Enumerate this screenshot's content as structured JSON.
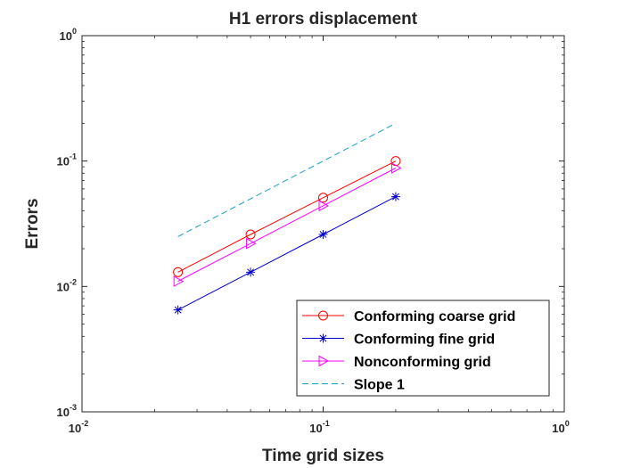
{
  "chart_data": {
    "type": "line",
    "title": "H1 errors displacement",
    "xlabel": "Time grid sizes",
    "ylabel": "Errors",
    "xscale": "log",
    "yscale": "log",
    "xlim": [
      0.01,
      1
    ],
    "ylim": [
      0.001,
      1
    ],
    "x_ticks": [
      {
        "base": "10",
        "exp": "-2",
        "value": 0.01
      },
      {
        "base": "10",
        "exp": "-1",
        "value": 0.1
      },
      {
        "base": "10",
        "exp": "0",
        "value": 1
      }
    ],
    "y_ticks": [
      {
        "base": "10",
        "exp": "-3",
        "value": 0.001
      },
      {
        "base": "10",
        "exp": "-2",
        "value": 0.01
      },
      {
        "base": "10",
        "exp": "-1",
        "value": 0.1
      },
      {
        "base": "10",
        "exp": "0",
        "value": 1
      }
    ],
    "grid": false,
    "legend_position": "bottom-right",
    "series": [
      {
        "name": "Conforming coarse grid",
        "color": "#ff0000",
        "marker": "circle",
        "line": "solid",
        "x": [
          0.025,
          0.05,
          0.1,
          0.2
        ],
        "y": [
          0.013,
          0.026,
          0.051,
          0.1
        ]
      },
      {
        "name": "Conforming fine grid",
        "color": "#0000cc",
        "marker": "asterisk",
        "line": "solid",
        "x": [
          0.025,
          0.05,
          0.1,
          0.2
        ],
        "y": [
          0.0065,
          0.013,
          0.026,
          0.052
        ]
      },
      {
        "name": "Nonconforming grid",
        "color": "#ff00ff",
        "marker": "triangle-right",
        "line": "solid",
        "x": [
          0.025,
          0.05,
          0.1,
          0.2
        ],
        "y": [
          0.011,
          0.022,
          0.044,
          0.088
        ]
      },
      {
        "name": "Slope 1",
        "color": "#1a9fc9",
        "marker": "none",
        "line": "dashed",
        "x": [
          0.025,
          0.2
        ],
        "y": [
          0.025,
          0.2
        ]
      }
    ]
  }
}
